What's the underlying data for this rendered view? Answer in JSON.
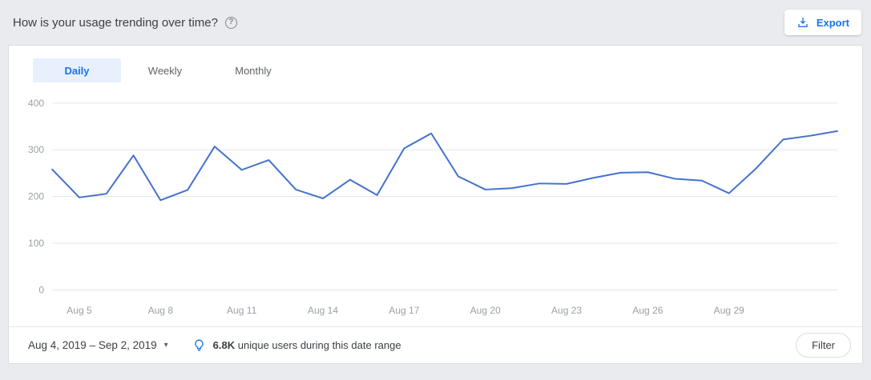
{
  "header": {
    "title": "How is your usage trending over time?",
    "export_label": "Export"
  },
  "tabs": [
    {
      "label": "Daily",
      "active": true
    },
    {
      "label": "Weekly",
      "active": false
    },
    {
      "label": "Monthly",
      "active": false
    }
  ],
  "chart_data": {
    "type": "line",
    "x": [
      "Aug 4",
      "Aug 5",
      "Aug 6",
      "Aug 7",
      "Aug 8",
      "Aug 9",
      "Aug 10",
      "Aug 11",
      "Aug 12",
      "Aug 13",
      "Aug 14",
      "Aug 15",
      "Aug 16",
      "Aug 17",
      "Aug 18",
      "Aug 19",
      "Aug 20",
      "Aug 21",
      "Aug 22",
      "Aug 23",
      "Aug 24",
      "Aug 25",
      "Aug 26",
      "Aug 27",
      "Aug 28",
      "Aug 29",
      "Aug 30",
      "Aug 31",
      "Sep 1",
      "Sep 2"
    ],
    "values": [
      258,
      198,
      206,
      288,
      192,
      214,
      307,
      257,
      278,
      215,
      196,
      236,
      203,
      303,
      335,
      243,
      215,
      218,
      228,
      227,
      240,
      251,
      252,
      238,
      234,
      207,
      260,
      322,
      330,
      340
    ],
    "x_tick_labels": [
      "Aug 5",
      "Aug 8",
      "Aug 11",
      "Aug 14",
      "Aug 17",
      "Aug 20",
      "Aug 23",
      "Aug 26",
      "Aug 29"
    ],
    "y_ticks": [
      0,
      100,
      200,
      300,
      400
    ],
    "ylim": [
      0,
      400
    ],
    "title": "",
    "xlabel": "",
    "ylabel": "",
    "grid": true,
    "legend": "none",
    "line_color": "#4472cc"
  },
  "footer": {
    "date_range": "Aug 4, 2019 – Sep 2, 2019",
    "insight_value": "6.8K",
    "insight_text": "unique users during this date range",
    "filter_label": "Filter"
  },
  "icons": {
    "help": "question-mark-circle",
    "export": "download-icon",
    "date_caret": "chevron-down-icon",
    "insight": "lightbulb-icon"
  },
  "colors": {
    "accent": "#1a73e8",
    "line": "#4472cc",
    "tab_active_bg": "#e8f0fe",
    "page_bg": "#e9ebee",
    "card_border": "#dadce0",
    "grid": "#e4e6e8",
    "muted_text": "#9aa0a6"
  }
}
